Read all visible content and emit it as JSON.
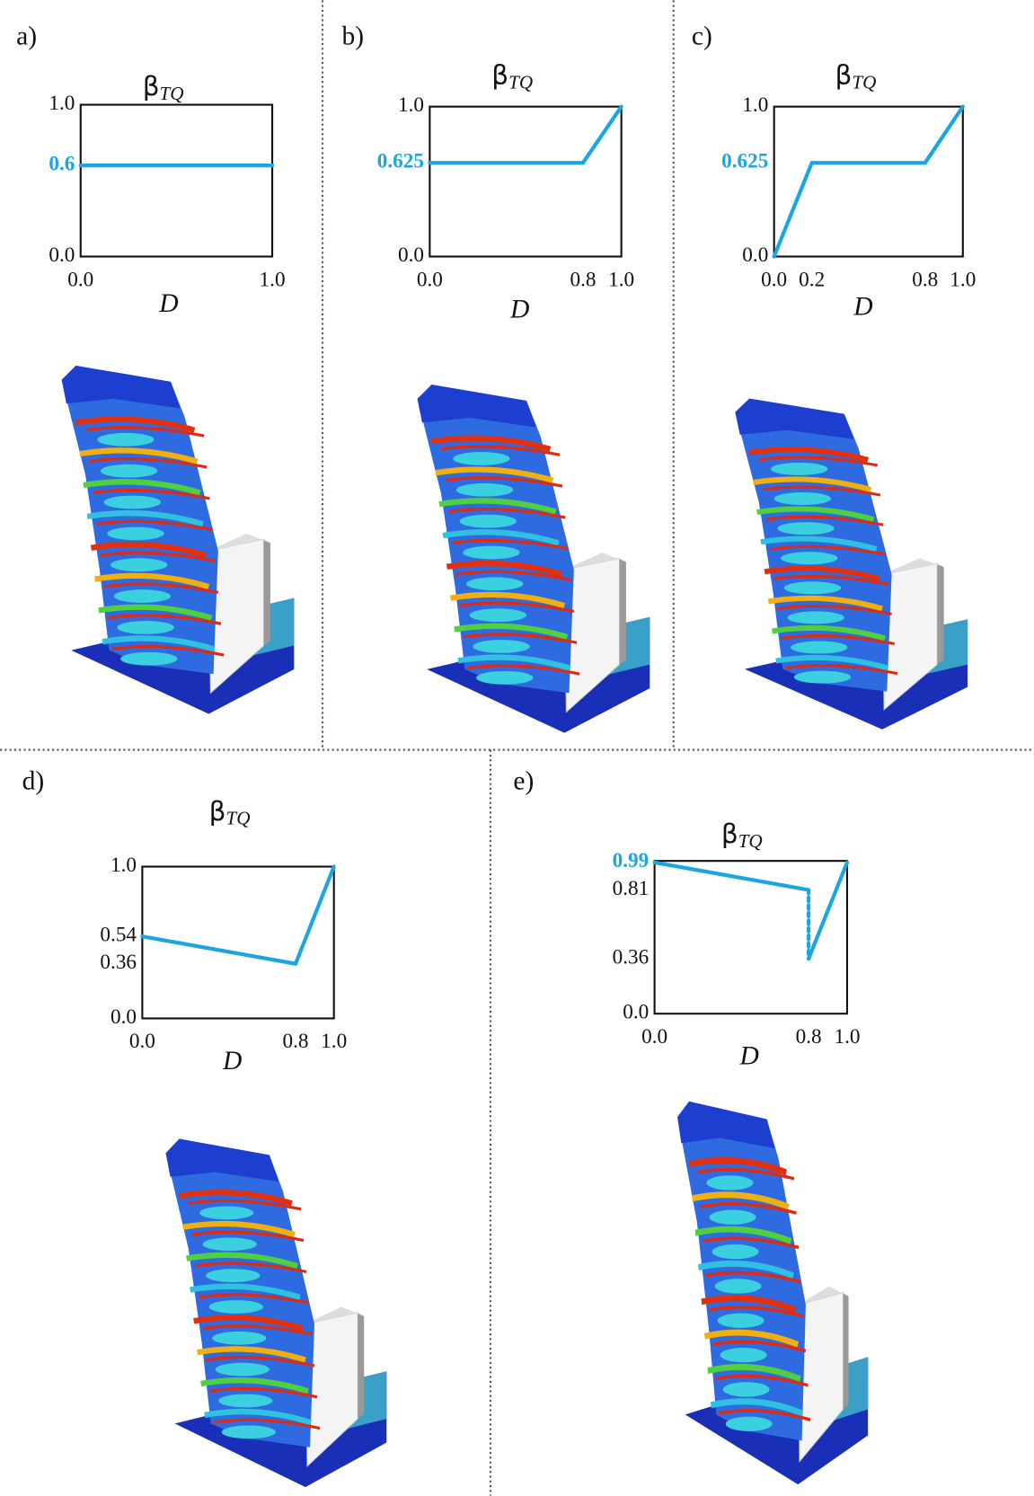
{
  "chart_data": [
    {
      "type": "line",
      "panel": "a)",
      "title": "β",
      "title_subscript": "TQ",
      "xlabel": "D",
      "color": "#1aa7e0",
      "x": [
        0,
        1
      ],
      "values": [
        0.6,
        0.6
      ],
      "xlim": [
        0,
        1
      ],
      "ylim": [
        0,
        1
      ],
      "xticks": [
        {
          "value": 0,
          "label": "0.0"
        },
        {
          "value": 1,
          "label": "1.0"
        }
      ],
      "yticks": [
        {
          "value": 0,
          "label": "0.0"
        },
        0.6,
        {
          "value": 1,
          "label": "1.0"
        }
      ],
      "highlight_yticks": [
        0.6
      ]
    },
    {
      "type": "line",
      "panel": "b)",
      "title": "β",
      "title_subscript": "TQ",
      "xlabel": "D",
      "color": "#1aa7e0",
      "x": [
        0,
        0.8,
        1
      ],
      "values": [
        0.625,
        0.625,
        1
      ],
      "xlim": [
        0,
        1
      ],
      "ylim": [
        0,
        1
      ],
      "xticks": [
        {
          "value": 0,
          "label": "0.0"
        },
        0.8,
        {
          "value": 1,
          "label": "1.0"
        }
      ],
      "yticks": [
        {
          "value": 0,
          "label": "0.0"
        },
        0.625,
        {
          "value": 1,
          "label": "1.0"
        }
      ],
      "highlight_yticks": [
        0.625
      ]
    },
    {
      "type": "line",
      "panel": "c)",
      "title": "β",
      "title_subscript": "TQ",
      "xlabel": "D",
      "color": "#1aa7e0",
      "x": [
        0,
        0.2,
        0.8,
        1
      ],
      "values": [
        0,
        0.625,
        0.625,
        1
      ],
      "xlim": [
        0,
        1
      ],
      "ylim": [
        0,
        1
      ],
      "xticks": [
        {
          "value": 0,
          "label": "0.0"
        },
        0.2,
        0.8,
        {
          "value": 1,
          "label": "1.0"
        }
      ],
      "yticks": [
        {
          "value": 0,
          "label": "0.0"
        },
        0.625,
        {
          "value": 1,
          "label": "1.0"
        }
      ],
      "highlight_yticks": [
        0.625
      ]
    },
    {
      "type": "line",
      "panel": "d)",
      "title": "β",
      "title_subscript": "TQ",
      "xlabel": "D",
      "color": "#1aa7e0",
      "x": [
        0,
        0.8,
        1
      ],
      "values": [
        0.54,
        0.36,
        1
      ],
      "xlim": [
        0,
        1
      ],
      "ylim": [
        0,
        1
      ],
      "xticks": [
        {
          "value": 0,
          "label": "0.0"
        },
        0.8,
        {
          "value": 1,
          "label": "1.0"
        }
      ],
      "yticks": [
        {
          "value": 0,
          "label": "0.0"
        },
        0.36,
        0.54,
        {
          "value": 1,
          "label": "1.0"
        }
      ],
      "highlight_yticks": []
    },
    {
      "type": "line",
      "panel": "e)",
      "title": "β",
      "title_subscript": "TQ",
      "xlabel": "D",
      "color": "#1aa7e0",
      "x": [
        0,
        0.8,
        0.8,
        1
      ],
      "values": [
        0.99,
        0.81,
        0.36,
        0.99
      ],
      "dashed_segments": [
        1
      ],
      "xlim": [
        0,
        1
      ],
      "ylim": [
        0,
        1
      ],
      "xticks": [
        {
          "value": 0,
          "label": "0.0"
        },
        0.8,
        {
          "value": 1,
          "label": "1.0"
        }
      ],
      "yticks": [
        {
          "value": 0,
          "label": "0.0"
        },
        0.36,
        0.81,
        0.99
      ],
      "highlight_yticks": [
        0.99
      ]
    }
  ]
}
